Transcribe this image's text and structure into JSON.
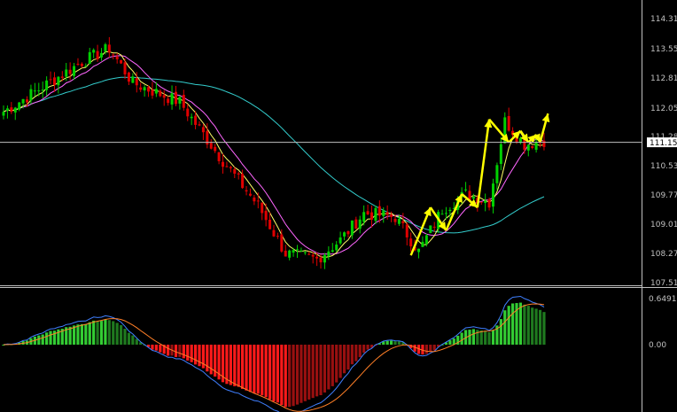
{
  "colors": {
    "background": "#000000",
    "axis": "#c0c0c0",
    "candle_up": "#00d000",
    "candle_down": "#e00000",
    "ma_fast": "#ffff66",
    "ma_mid": "#ff66ff",
    "ma_slow": "#33cccc",
    "zigzag": "#ffff00",
    "hist_pos_bright": "#33cc33",
    "hist_pos_dark": "#1f7a1f",
    "hist_neg_bright": "#ff1a1a",
    "hist_neg_dark": "#991010",
    "macd_line": "#3f7fff",
    "signal_line": "#ff7f27",
    "price_tag_bg": "#ffffff",
    "price_tag_text": "#000000"
  },
  "current_price_label": "111.150",
  "chart_data": [
    {
      "type": "candlestick",
      "panel": "price",
      "y_ticks": [
        "114.310",
        "113.550",
        "112.810",
        "112.050",
        "111.280",
        "110.530",
        "109.770",
        "109.010",
        "108.270",
        "107.510"
      ],
      "y_tick_values": [
        114.31,
        113.55,
        112.81,
        112.05,
        111.28,
        110.53,
        109.77,
        109.01,
        108.27,
        107.51
      ],
      "ylim": [
        107.51,
        114.31
      ],
      "horizontal_line": 111.15,
      "bar_count": 120,
      "close_anchors": [
        [
          0,
          111.95
        ],
        [
          10,
          112.6
        ],
        [
          20,
          113.25
        ],
        [
          27,
          113.6
        ],
        [
          33,
          112.7
        ],
        [
          45,
          112.2
        ],
        [
          55,
          110.8
        ],
        [
          65,
          109.5
        ],
        [
          72,
          108.25
        ],
        [
          80,
          108.1
        ],
        [
          86,
          108.6
        ],
        [
          92,
          109.3
        ],
        [
          100,
          109.2
        ],
        [
          106,
          108.3
        ],
        [
          112,
          109.4
        ],
        [
          118,
          109.8
        ],
        [
          124,
          109.6
        ],
        [
          128,
          111.7
        ],
        [
          133,
          111.1
        ],
        [
          138,
          111.2
        ]
      ],
      "zigzag": [
        [
          104,
          108.2
        ],
        [
          109,
          109.45
        ],
        [
          113,
          108.85
        ],
        [
          117,
          109.8
        ],
        [
          121,
          109.45
        ],
        [
          124,
          111.75
        ],
        [
          129,
          111.15
        ],
        [
          132,
          111.45
        ],
        [
          134,
          111.15
        ],
        [
          136,
          111.35
        ],
        [
          137,
          111.15
        ],
        [
          139,
          111.9
        ]
      ],
      "moving_average_periods": [
        5,
        10,
        50
      ]
    },
    {
      "type": "histogram_with_lines",
      "panel": "oscillator",
      "y_ticks": [
        "0.64919",
        "0.00"
      ],
      "y_tick_values": [
        0.64919,
        0
      ],
      "ylim": [
        -1.2,
        0.7
      ],
      "lines": [
        "MACD",
        "Signal"
      ]
    }
  ]
}
